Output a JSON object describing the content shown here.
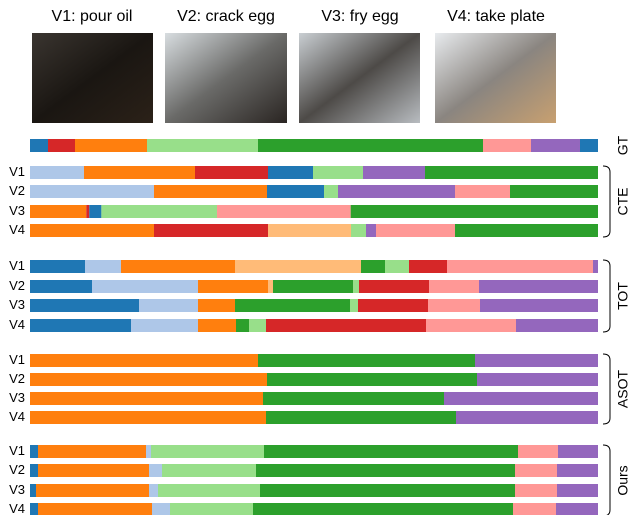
{
  "headers": [
    "V1: pour oil",
    "V2: crack egg",
    "V3: fry egg",
    "V4: take plate"
  ],
  "groups": [
    {
      "label": "GT",
      "rows": [
        {
          "label": null,
          "colors": [
            "#1f77b4",
            "#d62728",
            "#ff7f0e",
            "#98df8a",
            "#2ca02c",
            "#ff9896",
            "#9467bd",
            "#1f77b4"
          ],
          "lengths": [
            18,
            27,
            72,
            111,
            225,
            48,
            49,
            18
          ]
        }
      ]
    },
    {
      "label": "CTE",
      "rows": [
        {
          "label": "V1",
          "colors": [
            "#aec7e8",
            "#ff7f0e",
            "#d62728",
            "#1f77b4",
            "#98df8a",
            "#9467bd",
            "#2ca02c"
          ],
          "lengths": [
            54,
            111,
            73,
            45,
            50,
            62,
            173
          ]
        },
        {
          "label": "V2",
          "colors": [
            "#aec7e8",
            "#ff7f0e",
            "#1f77b4",
            "#98df8a",
            "#9467bd",
            "#ff9896",
            "#2ca02c"
          ],
          "lengths": [
            124,
            113,
            57,
            14,
            117,
            55,
            88
          ]
        },
        {
          "label": "V3",
          "colors": [
            "#ff7f0e",
            "#d62728",
            "#1f77b4",
            "#98df8a",
            "#ff9896",
            "#2ca02c"
          ],
          "lengths": [
            56,
            3,
            12,
            115,
            133,
            246
          ]
        },
        {
          "label": "V4",
          "colors": [
            "#ff7f0e",
            "#d62728",
            "#ffbb78",
            "#98df8a",
            "#9467bd",
            "#ff9896",
            "#2ca02c"
          ],
          "lengths": [
            124,
            114,
            83,
            15,
            10,
            79,
            143
          ]
        }
      ]
    },
    {
      "label": "TOT",
      "rows": [
        {
          "label": "V1",
          "colors": [
            "#1f77b4",
            "#aec7e8",
            "#ff7f0e",
            "#ffbb78",
            "#2ca02c",
            "#98df8a",
            "#d62728",
            "#ff9896",
            "#9467bd"
          ],
          "lengths": [
            55,
            36,
            114,
            126,
            24,
            24,
            38,
            146,
            5
          ]
        },
        {
          "label": "V2",
          "colors": [
            "#1f77b4",
            "#aec7e8",
            "#ff7f0e",
            "#ffbb78",
            "#2ca02c",
            "#98df8a",
            "#d62728",
            "#ff9896",
            "#9467bd"
          ],
          "lengths": [
            62,
            106,
            70,
            5,
            80,
            6,
            70,
            50,
            119
          ]
        },
        {
          "label": "V3",
          "colors": [
            "#1f77b4",
            "#aec7e8",
            "#ff7f0e",
            "#2ca02c",
            "#98df8a",
            "#d62728",
            "#ff9896",
            "#9467bd"
          ],
          "lengths": [
            109,
            59,
            37,
            115,
            8,
            70,
            52,
            118
          ]
        },
        {
          "label": "V4",
          "colors": [
            "#1f77b4",
            "#aec7e8",
            "#ff7f0e",
            "#2ca02c",
            "#98df8a",
            "#d62728",
            "#ff9896",
            "#9467bd"
          ],
          "lengths": [
            101,
            67,
            38,
            13,
            17,
            160,
            90,
            82
          ]
        }
      ]
    },
    {
      "label": "ASOT",
      "rows": [
        {
          "label": "V1",
          "colors": [
            "#ff7f0e",
            "#2ca02c",
            "#9467bd"
          ],
          "lengths": [
            228,
            217,
            123
          ]
        },
        {
          "label": "V2",
          "colors": [
            "#ff7f0e",
            "#2ca02c",
            "#9467bd"
          ],
          "lengths": [
            237,
            210,
            121
          ]
        },
        {
          "label": "V3",
          "colors": [
            "#ff7f0e",
            "#2ca02c",
            "#9467bd"
          ],
          "lengths": [
            233,
            181,
            154
          ]
        },
        {
          "label": "V4",
          "colors": [
            "#ff7f0e",
            "#2ca02c",
            "#9467bd"
          ],
          "lengths": [
            236,
            190,
            142
          ]
        }
      ]
    },
    {
      "label": "Ours",
      "rows": [
        {
          "label": "V1",
          "colors": [
            "#1f77b4",
            "#ff7f0e",
            "#aec7e8",
            "#98df8a",
            "#2ca02c",
            "#ff9896",
            "#9467bd"
          ],
          "lengths": [
            8,
            108,
            5,
            113,
            254,
            40,
            40
          ]
        },
        {
          "label": "V2",
          "colors": [
            "#1f77b4",
            "#ff7f0e",
            "#aec7e8",
            "#98df8a",
            "#2ca02c",
            "#ff9896",
            "#9467bd"
          ],
          "lengths": [
            8,
            111,
            13,
            94,
            259,
            42,
            41
          ]
        },
        {
          "label": "V3",
          "colors": [
            "#1f77b4",
            "#ff7f0e",
            "#aec7e8",
            "#98df8a",
            "#2ca02c",
            "#ff9896",
            "#9467bd"
          ],
          "lengths": [
            6,
            113,
            9,
            102,
            255,
            42,
            41
          ]
        },
        {
          "label": "V4",
          "colors": [
            "#1f77b4",
            "#ff7f0e",
            "#aec7e8",
            "#98df8a",
            "#2ca02c",
            "#ff9896",
            "#9467bd"
          ],
          "lengths": [
            8,
            114,
            18,
            83,
            260,
            43,
            42
          ]
        }
      ]
    }
  ]
}
